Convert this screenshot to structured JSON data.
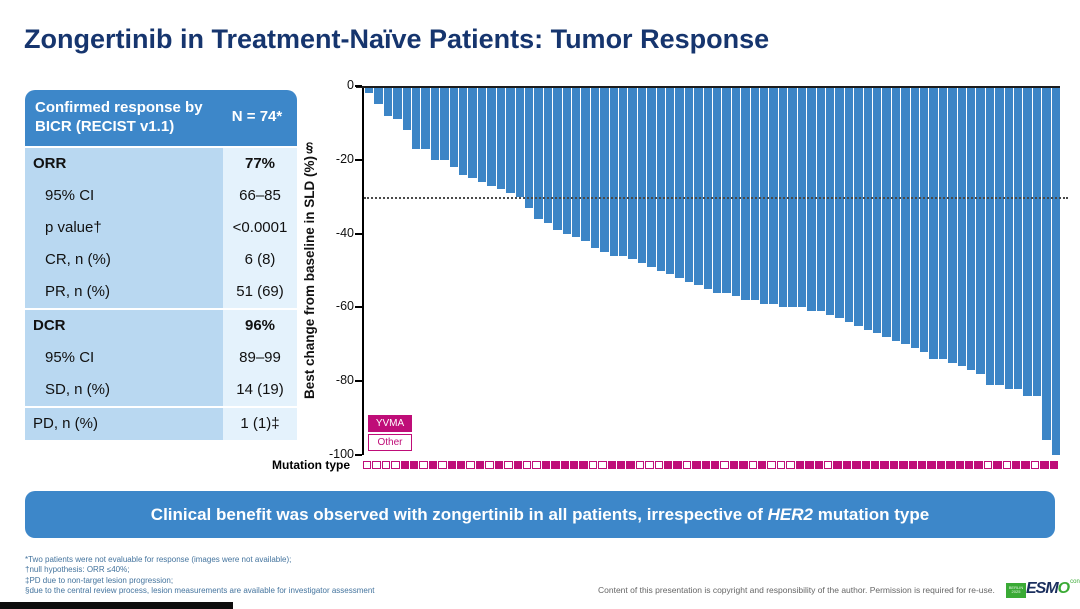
{
  "title": "Zongertinib in Treatment-Naïve Patients: Tumor Response",
  "table": {
    "header": {
      "label": "Confirmed response by BICR (RECIST v1.1)",
      "value": "N = 74*"
    },
    "rows": [
      {
        "label": "ORR",
        "value": "77%",
        "bold": true,
        "indent": false,
        "section_start": true
      },
      {
        "label": "95% CI",
        "value": "66–85",
        "bold": false,
        "indent": true,
        "section_start": false
      },
      {
        "label": "p value†",
        "value": "<0.0001",
        "bold": false,
        "indent": true,
        "section_start": false
      },
      {
        "label": "CR, n (%)",
        "value": "6 (8)",
        "bold": false,
        "indent": true,
        "section_start": false
      },
      {
        "label": "PR, n (%)",
        "value": "51 (69)",
        "bold": false,
        "indent": true,
        "section_start": false
      },
      {
        "label": "DCR",
        "value": "96%",
        "bold": true,
        "indent": false,
        "section_start": true
      },
      {
        "label": "95% CI",
        "value": "89–99",
        "bold": false,
        "indent": true,
        "section_start": false
      },
      {
        "label": "SD, n (%)",
        "value": "14 (19)",
        "bold": false,
        "indent": true,
        "section_start": false
      },
      {
        "label": "PD, n (%)",
        "value": "1 (1)‡",
        "bold": false,
        "indent": false,
        "section_start": true
      }
    ]
  },
  "chart_data": {
    "type": "bar",
    "subtype": "waterfall",
    "title": "",
    "ylabel": "Best change from baseline in SLD (%)§",
    "xlabel": "Mutation type",
    "ylim": [
      -100,
      0
    ],
    "yticks": [
      0,
      -20,
      -40,
      -60,
      -80,
      -100
    ],
    "reference_line": -30,
    "grid": false,
    "bar_color": "#3c85c6",
    "values": [
      -2,
      -5,
      -8,
      -9,
      -12,
      -17,
      -17,
      -20,
      -20,
      -22,
      -24,
      -25,
      -26,
      -27,
      -28,
      -29,
      -30,
      -33,
      -36,
      -37,
      -39,
      -40,
      -41,
      -42,
      -44,
      -45,
      -46,
      -46,
      -47,
      -48,
      -49,
      -50,
      -51,
      -52,
      -53,
      -54,
      -55,
      -56,
      -56,
      -57,
      -58,
      -58,
      -59,
      -59,
      -60,
      -60,
      -60,
      -61,
      -61,
      -62,
      -63,
      -64,
      -65,
      -66,
      -67,
      -68,
      -69,
      -70,
      -71,
      -72,
      -74,
      -74,
      -75,
      -76,
      -77,
      -78,
      -81,
      -81,
      -82,
      -82,
      -84,
      -84,
      -96,
      -100
    ],
    "mutation_pattern": [
      0,
      0,
      0,
      0,
      1,
      1,
      0,
      1,
      0,
      1,
      1,
      0,
      1,
      0,
      1,
      0,
      1,
      0,
      0,
      1,
      1,
      1,
      1,
      1,
      0,
      0,
      1,
      1,
      1,
      0,
      0,
      0,
      1,
      1,
      0,
      1,
      1,
      1,
      0,
      1,
      1,
      0,
      1,
      0,
      0,
      0,
      1,
      1,
      1,
      0,
      1,
      1,
      1,
      1,
      1,
      1,
      1,
      1,
      1,
      1,
      1,
      1,
      1,
      1,
      1,
      1,
      0,
      1,
      0,
      1,
      1,
      0,
      1,
      1
    ],
    "legend": [
      {
        "label": "YVMA",
        "filled": true
      },
      {
        "label": "Other",
        "filled": false
      }
    ],
    "legend_position": "bottom-left"
  },
  "banner": {
    "text_before": "Clinical benefit was observed with zongertinib in all patients, irrespective of ",
    "italic": "HER2",
    "text_after": " mutation type"
  },
  "footnotes": [
    "*Two patients were not evaluable for response (images were not available);",
    "†null hypothesis: ORR ≤40%;",
    "‡PD due to non-target lesion progression;",
    "§due to the central review process, lesion measurements are available for investigator assessment"
  ],
  "copyright": "Content of this presentation is copyright and responsibility of the author. Permission is required for re-use.",
  "logo": {
    "badge": "BERLIN 2025",
    "name": "ESM",
    "name_o": "O",
    "suffix": "congress"
  },
  "colors": {
    "accent_blue": "#3d87c9",
    "bar_blue": "#3c85c6",
    "magenta": "#bf0d78",
    "title_navy": "#16356e",
    "table_label_bg": "#b9d8f1",
    "table_value_bg": "#e4f2fc",
    "footnote_blue": "#44749e",
    "logo_green": "#3aaa35",
    "logo_navy": "#1b2f5e"
  }
}
